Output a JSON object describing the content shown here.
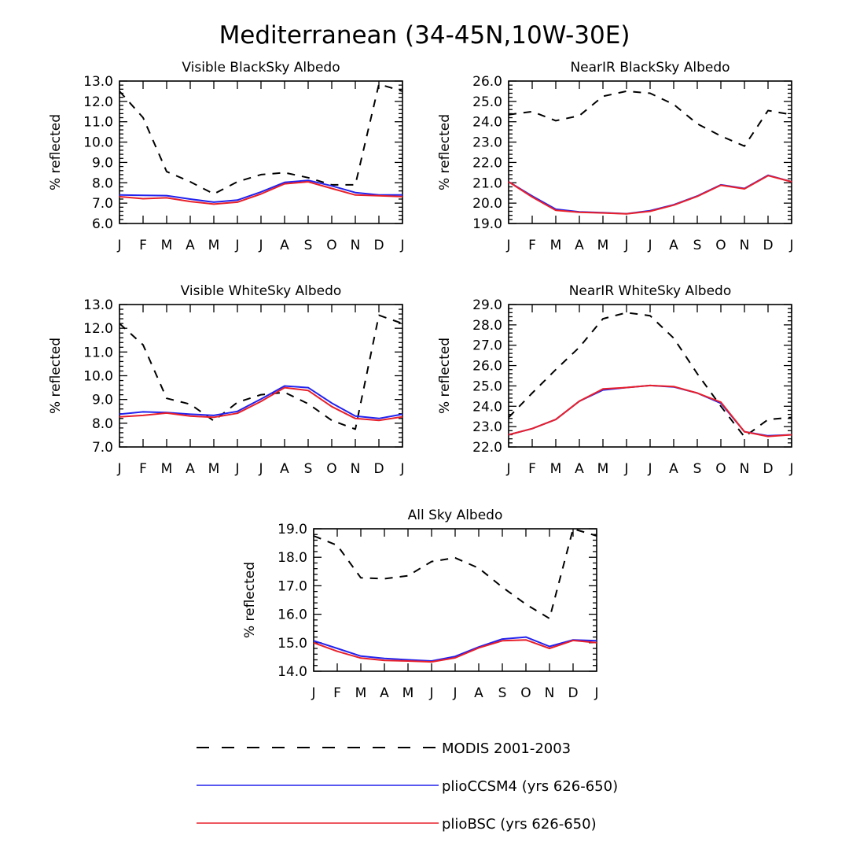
{
  "title": "Mediterranean (34-45N,10W-30E)",
  "colors": {
    "modis": "#000000",
    "ccsm4": "#2222ee",
    "bsc": "#e8202a",
    "axis": "#000000"
  },
  "legend": [
    {
      "key": "modis",
      "label": "MODIS 2001-2003",
      "style": "dashed"
    },
    {
      "key": "ccsm4",
      "label": "plioCCSM4 (yrs 626-650)",
      "style": "solid"
    },
    {
      "key": "bsc",
      "label": "plioBSC (yrs 626-650)",
      "style": "solid"
    }
  ],
  "chart_data": [
    {
      "type": "line",
      "title": "Visible BlackSky Albedo",
      "ylabel": "% reflected",
      "categories": [
        "J",
        "F",
        "M",
        "A",
        "M",
        "J",
        "J",
        "A",
        "S",
        "O",
        "N",
        "D",
        "J"
      ],
      "ylim": [
        6.0,
        13.0
      ],
      "yticks": [
        6.0,
        7.0,
        8.0,
        9.0,
        10.0,
        11.0,
        12.0,
        13.0
      ],
      "series": [
        {
          "name": "MODIS 2001-2003",
          "key": "modis",
          "values": [
            12.5,
            11.2,
            8.55,
            8.05,
            7.45,
            8.05,
            8.4,
            8.5,
            8.25,
            7.9,
            7.9,
            12.85,
            12.5
          ]
        },
        {
          "name": "plioCCSM4 (yrs 626-650)",
          "key": "ccsm4",
          "values": [
            7.4,
            7.38,
            7.37,
            7.2,
            7.05,
            7.15,
            7.55,
            8.02,
            8.12,
            7.85,
            7.52,
            7.4,
            7.4
          ]
        },
        {
          "name": "plioBSC (yrs 626-650)",
          "key": "bsc",
          "values": [
            7.32,
            7.22,
            7.26,
            7.08,
            6.95,
            7.05,
            7.45,
            7.95,
            8.05,
            7.72,
            7.4,
            7.36,
            7.32
          ]
        }
      ]
    },
    {
      "type": "line",
      "title": "NearIR BlackSky Albedo",
      "ylabel": "% reflected",
      "categories": [
        "J",
        "F",
        "M",
        "A",
        "M",
        "J",
        "J",
        "A",
        "S",
        "O",
        "N",
        "D",
        "J"
      ],
      "ylim": [
        19.0,
        26.0
      ],
      "yticks": [
        19.0,
        20.0,
        21.0,
        22.0,
        23.0,
        24.0,
        25.0,
        26.0
      ],
      "series": [
        {
          "name": "MODIS 2001-2003",
          "key": "modis",
          "values": [
            24.35,
            24.5,
            24.05,
            24.3,
            25.25,
            25.5,
            25.4,
            24.85,
            23.9,
            23.3,
            22.8,
            24.55,
            24.35
          ]
        },
        {
          "name": "plioCCSM4 (yrs 626-650)",
          "key": "ccsm4",
          "values": [
            21.05,
            20.35,
            19.7,
            19.57,
            19.53,
            19.48,
            19.63,
            19.92,
            20.35,
            20.9,
            20.72,
            21.37,
            21.05
          ]
        },
        {
          "name": "plioBSC (yrs 626-650)",
          "key": "bsc",
          "values": [
            21.05,
            20.3,
            19.65,
            19.55,
            19.52,
            19.47,
            19.6,
            19.9,
            20.33,
            20.88,
            20.7,
            21.35,
            21.05
          ]
        }
      ]
    },
    {
      "type": "line",
      "title": "Visible WhiteSky Albedo",
      "ylabel": "% reflected",
      "categories": [
        "J",
        "F",
        "M",
        "A",
        "M",
        "J",
        "J",
        "A",
        "S",
        "O",
        "N",
        "D",
        "J"
      ],
      "ylim": [
        7.0,
        13.0
      ],
      "yticks": [
        7.0,
        8.0,
        9.0,
        10.0,
        11.0,
        12.0,
        13.0
      ],
      "series": [
        {
          "name": "MODIS 2001-2003",
          "key": "modis",
          "values": [
            12.2,
            11.3,
            9.05,
            8.8,
            8.1,
            8.88,
            9.2,
            9.3,
            8.82,
            8.12,
            7.75,
            12.55,
            12.2
          ]
        },
        {
          "name": "plioCCSM4 (yrs 626-650)",
          "key": "ccsm4",
          "values": [
            8.38,
            8.48,
            8.45,
            8.38,
            8.33,
            8.5,
            9.02,
            9.57,
            9.5,
            8.85,
            8.3,
            8.2,
            8.38
          ]
        },
        {
          "name": "plioBSC (yrs 626-650)",
          "key": "bsc",
          "values": [
            8.27,
            8.33,
            8.43,
            8.3,
            8.25,
            8.42,
            8.92,
            9.5,
            9.38,
            8.7,
            8.2,
            8.12,
            8.27
          ]
        }
      ]
    },
    {
      "type": "line",
      "title": "NearIR WhiteSky Albedo",
      "ylabel": "% reflected",
      "categories": [
        "J",
        "F",
        "M",
        "A",
        "M",
        "J",
        "J",
        "A",
        "S",
        "O",
        "N",
        "D",
        "J"
      ],
      "ylim": [
        22.0,
        29.0
      ],
      "yticks": [
        22.0,
        23.0,
        24.0,
        25.0,
        26.0,
        27.0,
        28.0,
        29.0
      ],
      "series": [
        {
          "name": "MODIS 2001-2003",
          "key": "modis",
          "values": [
            23.45,
            24.65,
            25.8,
            26.9,
            28.3,
            28.6,
            28.45,
            27.35,
            25.6,
            24.0,
            22.5,
            23.35,
            23.45
          ]
        },
        {
          "name": "plioCCSM4 (yrs 626-650)",
          "key": "ccsm4",
          "values": [
            22.6,
            22.9,
            23.35,
            24.25,
            24.8,
            24.92,
            25.02,
            24.95,
            24.65,
            24.15,
            22.75,
            22.55,
            22.6
          ]
        },
        {
          "name": "plioBSC (yrs 626-650)",
          "key": "bsc",
          "values": [
            22.6,
            22.9,
            23.35,
            24.25,
            24.85,
            24.92,
            25.02,
            24.97,
            24.65,
            24.2,
            22.75,
            22.52,
            22.6
          ]
        }
      ]
    },
    {
      "type": "line",
      "title": "All Sky Albedo",
      "ylabel": "% reflected",
      "categories": [
        "J",
        "F",
        "M",
        "A",
        "M",
        "J",
        "J",
        "A",
        "S",
        "O",
        "N",
        "D",
        "J"
      ],
      "ylim": [
        14.0,
        19.0
      ],
      "yticks": [
        14.0,
        15.0,
        16.0,
        17.0,
        18.0,
        19.0
      ],
      "series": [
        {
          "name": "MODIS 2001-2003",
          "key": "modis",
          "values": [
            18.75,
            18.42,
            17.28,
            17.25,
            17.35,
            17.85,
            17.98,
            17.62,
            16.95,
            16.35,
            15.85,
            19.0,
            18.75
          ]
        },
        {
          "name": "plioCCSM4 (yrs 626-650)",
          "key": "ccsm4",
          "values": [
            15.07,
            14.8,
            14.53,
            14.45,
            14.4,
            14.36,
            14.52,
            14.85,
            15.13,
            15.2,
            14.87,
            15.1,
            15.07
          ]
        },
        {
          "name": "plioBSC (yrs 626-650)",
          "key": "bsc",
          "values": [
            15.0,
            14.7,
            14.46,
            14.38,
            14.36,
            14.33,
            14.47,
            14.82,
            15.07,
            15.1,
            14.8,
            15.08,
            15.0
          ]
        }
      ]
    }
  ]
}
